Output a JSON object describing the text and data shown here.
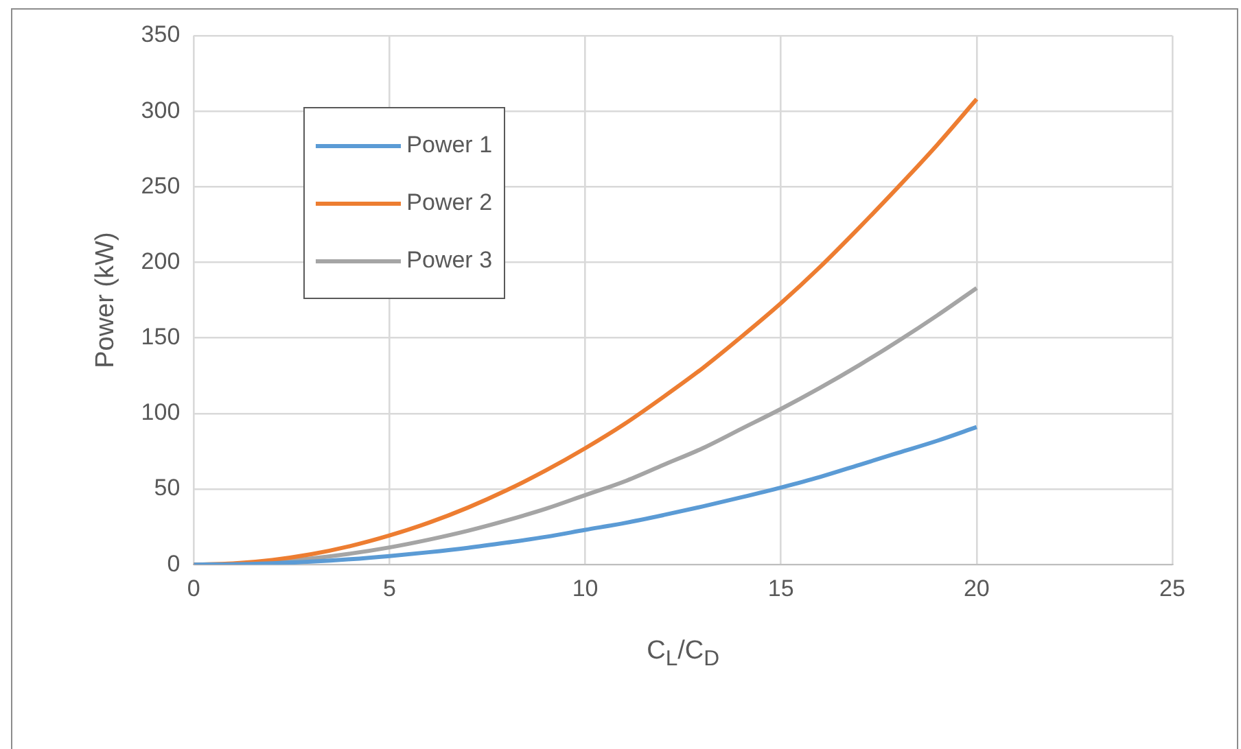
{
  "chart_data": {
    "type": "line",
    "xlabel": "C$_{L}$/C$_{D}$",
    "ylabel": "Power (kW)",
    "x": [
      0,
      1,
      2,
      3,
      4,
      5,
      6,
      7,
      8,
      9,
      10,
      11,
      12,
      13,
      14,
      15,
      16,
      17,
      18,
      19,
      20
    ],
    "series": [
      {
        "name": "Power 1",
        "color": "#5b9bd5",
        "values": [
          0,
          0.2,
          0.9,
          2,
          3.6,
          5.7,
          8.2,
          11.1,
          14.6,
          18.4,
          23,
          27.5,
          32.8,
          38.5,
          44.6,
          51,
          58,
          66,
          74,
          82,
          91
        ]
      },
      {
        "name": "Power 2",
        "color": "#ed7d31",
        "values": [
          0,
          0.8,
          3.1,
          6.9,
          12.3,
          19.3,
          27.7,
          37.7,
          49.3,
          62.4,
          77,
          93,
          111,
          130,
          151,
          173,
          197,
          223,
          250,
          278,
          308
        ]
      },
      {
        "name": "Power 3",
        "color": "#a5a5a5",
        "values": [
          0,
          0.5,
          1.8,
          4.1,
          7.3,
          11.4,
          16.5,
          22.4,
          29.3,
          37,
          46,
          55,
          66,
          77,
          90,
          103,
          117,
          132,
          148,
          165,
          183
        ]
      }
    ],
    "xlim": [
      0,
      25
    ],
    "xticks": [
      0,
      5,
      10,
      15,
      20,
      25
    ],
    "ylim": [
      0,
      350
    ],
    "yticks": [
      0,
      50,
      100,
      150,
      200,
      250,
      300,
      350
    ],
    "grid": true,
    "legend": "top left",
    "marker": "none",
    "line_style": "solid"
  }
}
